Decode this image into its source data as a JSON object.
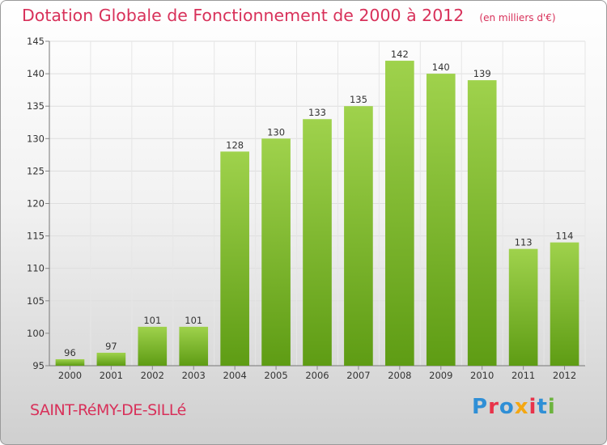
{
  "header": {
    "title": "Dotation Globale de Fonctionnement de 2000 à 2012",
    "unit": "(en milliers d'€)"
  },
  "footer": {
    "commune": "SAINT-RéMY-DE-SILLé",
    "logo_text": "Proxiti",
    "logo_colors": [
      "#2f8fd6",
      "#e8334a",
      "#2f8fd6",
      "#f4a712",
      "#e8334a",
      "#2f8fd6",
      "#6cb33e"
    ]
  },
  "chart_data": {
    "type": "bar",
    "categories": [
      "2000",
      "2001",
      "2002",
      "2003",
      "2004",
      "2005",
      "2006",
      "2007",
      "2008",
      "2009",
      "2010",
      "2011",
      "2012"
    ],
    "values": [
      96,
      97,
      101,
      101,
      128,
      130,
      133,
      135,
      142,
      140,
      139,
      113,
      114
    ],
    "ylim": [
      95,
      145
    ],
    "yticks": [
      95,
      100,
      105,
      110,
      115,
      120,
      125,
      130,
      135,
      140,
      145
    ],
    "grid": true,
    "bar_color_top": "#9fd24c",
    "bar_color_bottom": "#5e9c14"
  }
}
